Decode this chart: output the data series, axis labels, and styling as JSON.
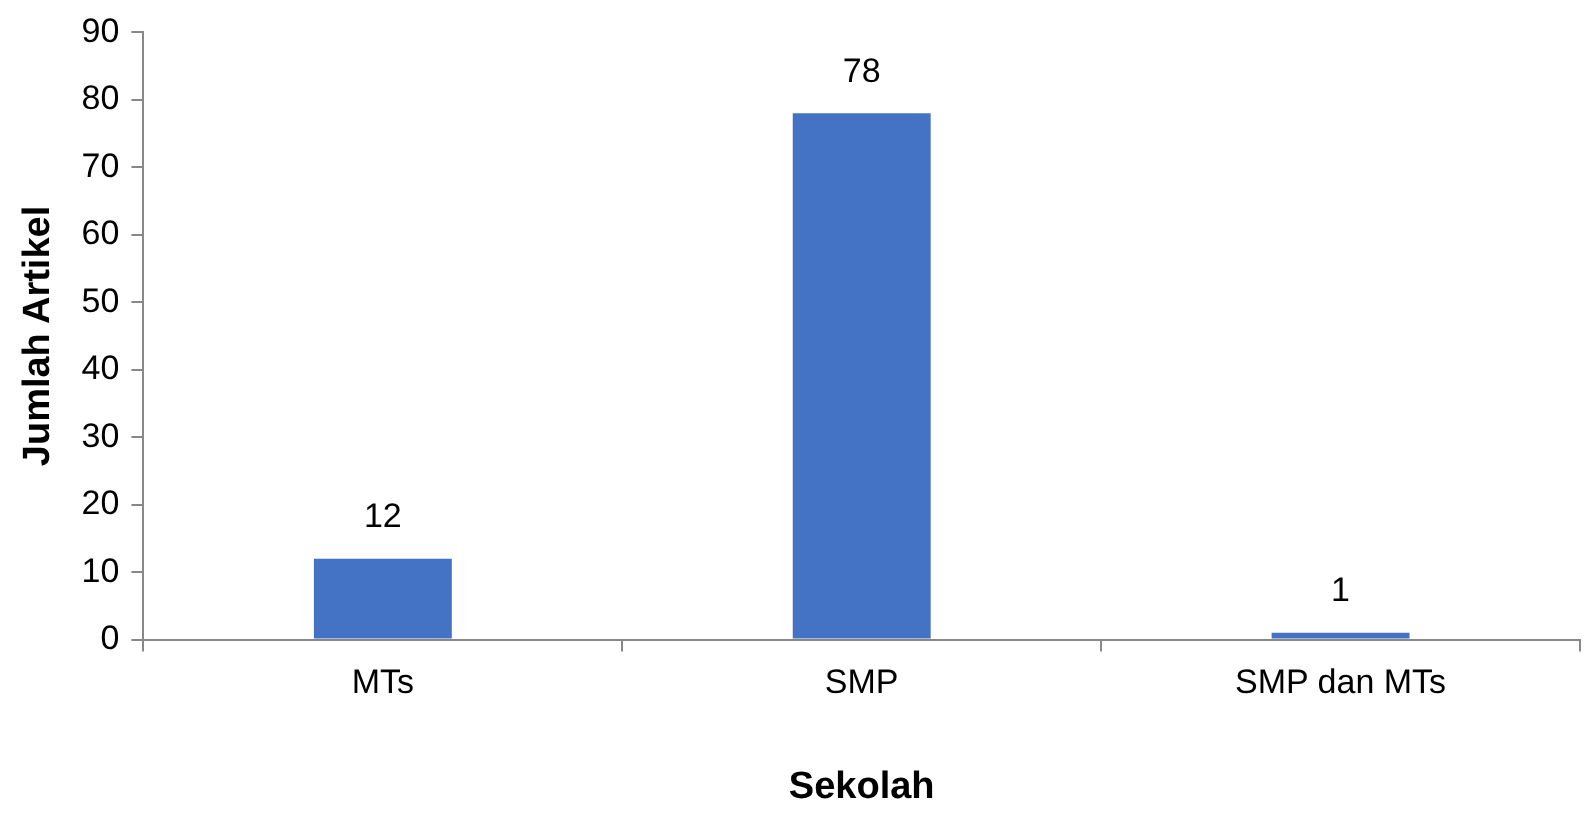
{
  "chart_data": {
    "type": "bar",
    "xlabel": "Sekolah",
    "ylabel": "Jumlah Artikel",
    "categories": [
      "MTs",
      "SMP",
      "SMP dan MTs"
    ],
    "series": [
      {
        "color": "#4472c4",
        "values": [
          12,
          78,
          1
        ]
      }
    ],
    "ylim": [
      0,
      90
    ],
    "yticks": [
      0,
      10,
      20,
      30,
      40,
      50,
      60,
      70,
      80,
      90
    ],
    "data_labels": true,
    "legend": false
  }
}
